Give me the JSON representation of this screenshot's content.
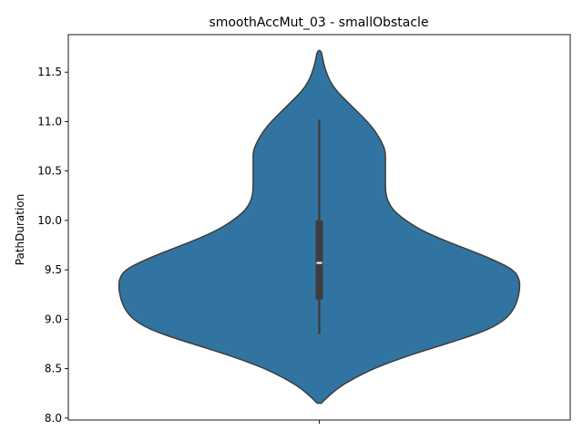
{
  "chart_data": {
    "type": "violin",
    "title": "smoothAccMut_03 - smallObstacle",
    "xlabel": "",
    "ylabel": "PathDuration",
    "categories": [
      ""
    ],
    "ylim": [
      7.98,
      11.88
    ],
    "yticks": [
      8.0,
      8.5,
      9.0,
      9.5,
      10.0,
      10.5,
      11.0,
      11.5
    ],
    "ytick_labels": [
      "8.0",
      "8.5",
      "9.0",
      "9.5",
      "10.0",
      "10.5",
      "11.0",
      "11.5"
    ],
    "grid": false,
    "legend": "none",
    "colors": {
      "violin_fill": "#3274a1",
      "violin_edge": "#3d3d3d",
      "box": "#3d3d3d",
      "median": "#ffffff"
    },
    "violin": {
      "min": 8.15,
      "max": 11.72,
      "whisker_low": 8.85,
      "q1": 9.2,
      "median": 9.57,
      "q3": 10.0,
      "whisker_high": 11.02,
      "density_profile": [
        {
          "y": 8.15,
          "w": 0.01
        },
        {
          "y": 8.2,
          "w": 0.035
        },
        {
          "y": 8.3,
          "w": 0.09
        },
        {
          "y": 8.4,
          "w": 0.17
        },
        {
          "y": 8.5,
          "w": 0.27
        },
        {
          "y": 8.6,
          "w": 0.4
        },
        {
          "y": 8.7,
          "w": 0.55
        },
        {
          "y": 8.8,
          "w": 0.71
        },
        {
          "y": 8.9,
          "w": 0.85
        },
        {
          "y": 9.0,
          "w": 0.93
        },
        {
          "y": 9.1,
          "w": 0.97
        },
        {
          "y": 9.2,
          "w": 0.99
        },
        {
          "y": 9.3,
          "w": 1.0
        },
        {
          "y": 9.4,
          "w": 1.0
        },
        {
          "y": 9.5,
          "w": 0.97
        },
        {
          "y": 9.6,
          "w": 0.87
        },
        {
          "y": 9.7,
          "w": 0.75
        },
        {
          "y": 9.8,
          "w": 0.62
        },
        {
          "y": 9.9,
          "w": 0.51
        },
        {
          "y": 10.0,
          "w": 0.43
        },
        {
          "y": 10.1,
          "w": 0.37
        },
        {
          "y": 10.2,
          "w": 0.34
        },
        {
          "y": 10.3,
          "w": 0.33
        },
        {
          "y": 10.4,
          "w": 0.33
        },
        {
          "y": 10.5,
          "w": 0.33
        },
        {
          "y": 10.6,
          "w": 0.33
        },
        {
          "y": 10.7,
          "w": 0.33
        },
        {
          "y": 10.8,
          "w": 0.31
        },
        {
          "y": 10.9,
          "w": 0.28
        },
        {
          "y": 11.0,
          "w": 0.24
        },
        {
          "y": 11.1,
          "w": 0.19
        },
        {
          "y": 11.2,
          "w": 0.14
        },
        {
          "y": 11.3,
          "w": 0.09
        },
        {
          "y": 11.4,
          "w": 0.055
        },
        {
          "y": 11.5,
          "w": 0.035
        },
        {
          "y": 11.6,
          "w": 0.02
        },
        {
          "y": 11.72,
          "w": 0.01
        }
      ]
    }
  }
}
